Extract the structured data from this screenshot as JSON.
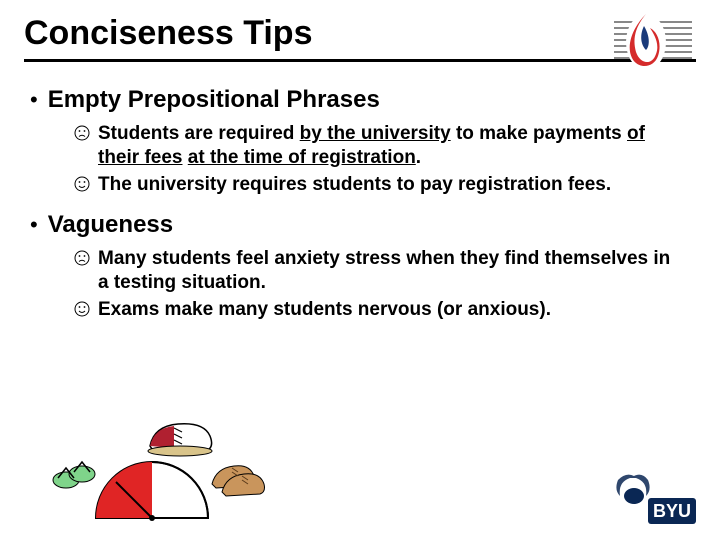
{
  "title": "Conciseness Tips",
  "colors": {
    "text": "#000000",
    "background": "#ffffff",
    "flame_red": "#d52b2b",
    "flame_blue": "#1a3a7a",
    "stripe": "#888888",
    "byu_blue": "#0a2754",
    "shoe_red": "#b02030",
    "shoe_tan": "#c9955c",
    "sandal_green": "#7fd48a",
    "gauge_red": "#e02525"
  },
  "sections": [
    {
      "title": "Empty Prepositional Phrases",
      "items": [
        {
          "mood": "sad",
          "text_html": "Students are required <span class=\"underline\">by the university</span> to make payments <span class=\"underline\">of their fees</span> <span class=\"underline\">at the time of registration</span>."
        },
        {
          "mood": "happy",
          "text_html": "The university requires students to pay registration fees."
        }
      ]
    },
    {
      "title": "Vagueness",
      "items": [
        {
          "mood": "sad",
          "text_html": "Many students feel anxiety stress when they find themselves in a testing situation."
        },
        {
          "mood": "happy",
          "text_html": "Exams make many students nervous (or anxious)."
        }
      ]
    }
  ],
  "footer_label": "shoe-gauge-clipart",
  "byu_label": "BYU"
}
